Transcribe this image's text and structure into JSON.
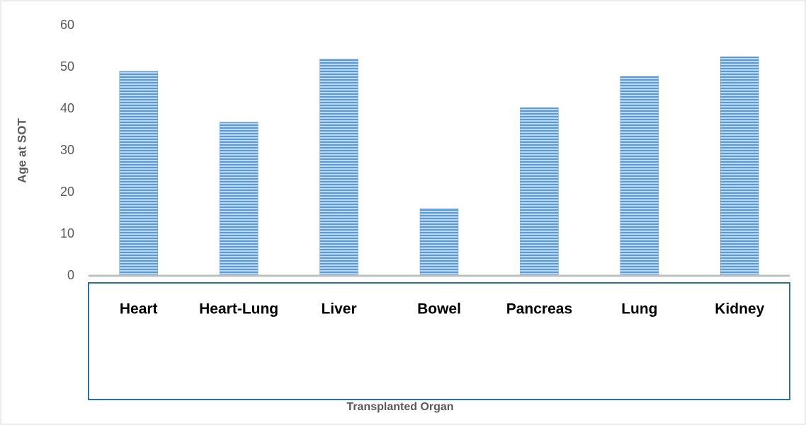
{
  "chart_data": {
    "type": "bar",
    "x_label": "Transplanted Organ",
    "y_label": "Age at SOT",
    "categories": [
      "Heart",
      "Heart-Lung",
      "Liver",
      "Bowel",
      "Pancreas",
      "Lung",
      "Kidney"
    ],
    "values": [
      49,
      36.8,
      51.9,
      16.1,
      40.3,
      47.8,
      52.5
    ],
    "color": "#5b9bd5",
    "ylim": [
      0,
      60
    ],
    "yticks": [
      0,
      10,
      20,
      30,
      40,
      50,
      60
    ],
    "grid": false
  }
}
